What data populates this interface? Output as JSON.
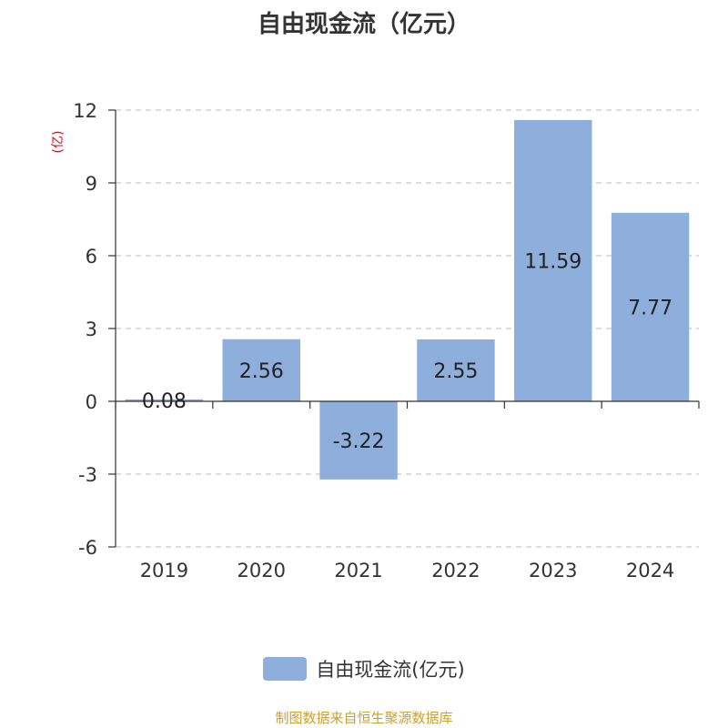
{
  "chart_data": {
    "type": "bar",
    "title": "自由现金流（亿元）",
    "ylabel": "(亿)",
    "categories": [
      "2019",
      "2020",
      "2021",
      "2022",
      "2023",
      "2024"
    ],
    "series": [
      {
        "name": "自由现金流(亿元)",
        "values": [
          0.08,
          2.56,
          -3.22,
          2.55,
          11.59,
          7.77
        ]
      }
    ],
    "data_labels": [
      "0.08",
      "2.56",
      "-3.22",
      "2.55",
      "11.59",
      "7.77"
    ],
    "yticks": [
      -6,
      -3,
      0,
      3,
      6,
      9,
      12
    ],
    "ylim": [
      -6,
      12
    ],
    "grid": true,
    "legend_position": "bottom",
    "colors": {
      "bar": "#8eaedb",
      "grid": "#c8c8c8",
      "axis": "#333333",
      "ylabel": "#e60012"
    }
  },
  "source_note": "制图数据来自恒生聚源数据库"
}
